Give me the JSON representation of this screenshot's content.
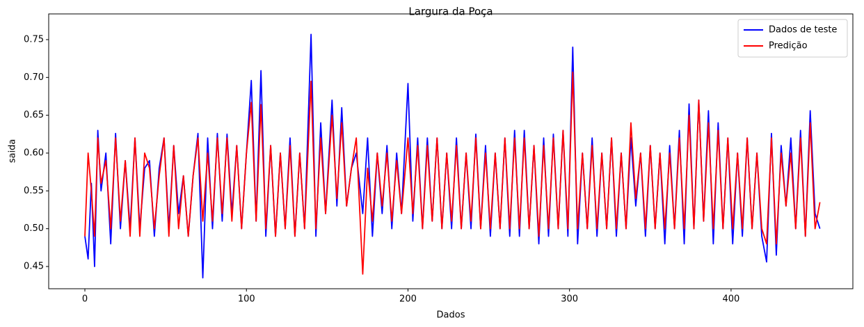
{
  "chart_data": {
    "type": "line",
    "title": "Largura da Poça",
    "x_label": "Dados",
    "y_label": "saida",
    "x": [
      0,
      2,
      4,
      6,
      8,
      10,
      13,
      16,
      19,
      22,
      25,
      28,
      31,
      34,
      37,
      40,
      43,
      46,
      49,
      52,
      55,
      58,
      61,
      64,
      67,
      70,
      73,
      76,
      79,
      82,
      85,
      88,
      91,
      94,
      97,
      100,
      103,
      106,
      109,
      112,
      115,
      118,
      121,
      124,
      127,
      130,
      133,
      136,
      140,
      143,
      146,
      149,
      153,
      156,
      159,
      162,
      165,
      168,
      172,
      175,
      178,
      181,
      184,
      187,
      190,
      193,
      196,
      200,
      203,
      206,
      209,
      212,
      215,
      218,
      221,
      224,
      227,
      230,
      233,
      236,
      239,
      242,
      245,
      248,
      251,
      254,
      257,
      260,
      263,
      266,
      269,
      272,
      275,
      278,
      281,
      284,
      287,
      290,
      293,
      296,
      299,
      302,
      305,
      308,
      311,
      314,
      317,
      320,
      323,
      326,
      329,
      332,
      335,
      338,
      341,
      344,
      347,
      350,
      353,
      356,
      359,
      362,
      365,
      368,
      371,
      374,
      377,
      380,
      383,
      386,
      389,
      392,
      395,
      398,
      401,
      404,
      407,
      410,
      413,
      416,
      419,
      422,
      425,
      428,
      431,
      434,
      437,
      440,
      443,
      446,
      449,
      452,
      455
    ],
    "series": [
      {
        "name": "Dados de teste",
        "color": "#0000ff",
        "values": [
          0.49,
          0.46,
          0.56,
          0.45,
          0.63,
          0.55,
          0.6,
          0.48,
          0.626,
          0.5,
          0.59,
          0.5,
          0.62,
          0.5,
          0.58,
          0.59,
          0.49,
          0.58,
          0.62,
          0.5,
          0.61,
          0.52,
          0.57,
          0.49,
          0.57,
          0.626,
          0.435,
          0.62,
          0.5,
          0.626,
          0.51,
          0.625,
          0.52,
          0.61,
          0.5,
          0.6,
          0.696,
          0.51,
          0.709,
          0.49,
          0.61,
          0.49,
          0.6,
          0.5,
          0.62,
          0.49,
          0.6,
          0.5,
          0.757,
          0.49,
          0.64,
          0.52,
          0.67,
          0.53,
          0.66,
          0.53,
          0.58,
          0.6,
          0.52,
          0.62,
          0.49,
          0.6,
          0.52,
          0.61,
          0.5,
          0.6,
          0.52,
          0.692,
          0.51,
          0.62,
          0.5,
          0.62,
          0.51,
          0.62,
          0.5,
          0.6,
          0.5,
          0.62,
          0.5,
          0.6,
          0.5,
          0.625,
          0.5,
          0.61,
          0.49,
          0.6,
          0.5,
          0.62,
          0.49,
          0.63,
          0.49,
          0.63,
          0.5,
          0.61,
          0.48,
          0.62,
          0.49,
          0.625,
          0.5,
          0.63,
          0.49,
          0.74,
          0.48,
          0.6,
          0.5,
          0.62,
          0.49,
          0.6,
          0.5,
          0.62,
          0.49,
          0.6,
          0.5,
          0.62,
          0.53,
          0.6,
          0.49,
          0.61,
          0.5,
          0.6,
          0.48,
          0.61,
          0.5,
          0.63,
          0.48,
          0.665,
          0.5,
          0.67,
          0.51,
          0.656,
          0.48,
          0.64,
          0.5,
          0.62,
          0.48,
          0.6,
          0.49,
          0.62,
          0.5,
          0.6,
          0.49,
          0.456,
          0.626,
          0.465,
          0.61,
          0.53,
          0.62,
          0.5,
          0.63,
          0.49,
          0.656,
          0.52,
          0.5
        ]
      },
      {
        "name": "Predição",
        "color": "#ff0000",
        "values": [
          0.49,
          0.6,
          0.55,
          0.49,
          0.62,
          0.56,
          0.59,
          0.5,
          0.62,
          0.51,
          0.59,
          0.49,
          0.62,
          0.49,
          0.6,
          0.58,
          0.5,
          0.57,
          0.62,
          0.49,
          0.61,
          0.5,
          0.57,
          0.49,
          0.57,
          0.62,
          0.51,
          0.6,
          0.51,
          0.62,
          0.52,
          0.62,
          0.51,
          0.61,
          0.5,
          0.6,
          0.667,
          0.51,
          0.664,
          0.5,
          0.61,
          0.49,
          0.6,
          0.5,
          0.61,
          0.49,
          0.6,
          0.5,
          0.695,
          0.5,
          0.62,
          0.52,
          0.65,
          0.54,
          0.64,
          0.53,
          0.58,
          0.62,
          0.44,
          0.58,
          0.51,
          0.6,
          0.53,
          0.6,
          0.51,
          0.59,
          0.52,
          0.62,
          0.52,
          0.61,
          0.5,
          0.61,
          0.51,
          0.62,
          0.5,
          0.6,
          0.51,
          0.61,
          0.5,
          0.6,
          0.51,
          0.62,
          0.5,
          0.6,
          0.5,
          0.6,
          0.5,
          0.62,
          0.5,
          0.62,
          0.5,
          0.62,
          0.5,
          0.61,
          0.49,
          0.61,
          0.5,
          0.62,
          0.5,
          0.63,
          0.5,
          0.707,
          0.5,
          0.6,
          0.5,
          0.61,
          0.5,
          0.6,
          0.5,
          0.62,
          0.5,
          0.6,
          0.5,
          0.64,
          0.54,
          0.6,
          0.5,
          0.61,
          0.5,
          0.6,
          0.5,
          0.6,
          0.5,
          0.62,
          0.5,
          0.65,
          0.5,
          0.67,
          0.51,
          0.64,
          0.5,
          0.63,
          0.5,
          0.62,
          0.5,
          0.6,
          0.5,
          0.62,
          0.5,
          0.6,
          0.5,
          0.48,
          0.62,
          0.48,
          0.6,
          0.53,
          0.6,
          0.5,
          0.62,
          0.49,
          0.64,
          0.5,
          0.535
        ]
      }
    ],
    "xlim": [
      -22.4,
      475.4
    ],
    "ylim": [
      0.4206,
      0.784
    ],
    "xticks": [
      0,
      100,
      200,
      300,
      400
    ],
    "yticks": [
      0.45,
      {
        "value": 0.5,
        "label": "0.50"
      },
      0.55,
      {
        "value": 0.6,
        "label": "0.60"
      },
      0.65,
      {
        "value": 0.7,
        "label": "0.70"
      },
      0.75
    ],
    "legend": "upper right",
    "grid": false
  }
}
